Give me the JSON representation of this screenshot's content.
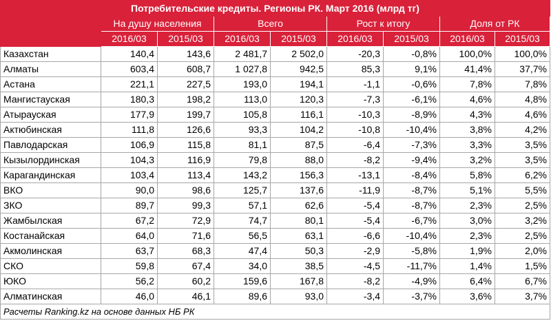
{
  "title": "Потребительские кредиты. Регионы РК. Март 2016 (млрд тг)",
  "groups": [
    "На душу населения",
    "Всего",
    "Рост к итогу",
    "Доля от РК"
  ],
  "years": [
    "2016/03",
    "2015/03",
    "2016/03",
    "2015/03",
    "2016/03",
    "2015/03",
    "2016/03",
    "2015/03"
  ],
  "rows": [
    [
      "Казахстан",
      "140,4",
      "143,6",
      "2 481,7",
      "2 502,0",
      "-20,3",
      "-0,8%",
      "100,0%",
      "100,0%"
    ],
    [
      "Алматы",
      "603,4",
      "608,7",
      "1 027,8",
      "942,5",
      "85,3",
      "9,1%",
      "41,4%",
      "37,7%"
    ],
    [
      "Астана",
      "221,1",
      "227,5",
      "193,0",
      "194,1",
      "-1,1",
      "-0,6%",
      "7,8%",
      "7,8%"
    ],
    [
      "Мангистауская",
      "180,3",
      "198,2",
      "113,0",
      "120,3",
      "-7,3",
      "-6,1%",
      "4,6%",
      "4,8%"
    ],
    [
      "Атырауская",
      "177,9",
      "199,7",
      "105,8",
      "116,1",
      "-10,3",
      "-8,9%",
      "4,3%",
      "4,6%"
    ],
    [
      "Актюбинская",
      "111,8",
      "126,6",
      "93,3",
      "104,2",
      "-10,8",
      "-10,4%",
      "3,8%",
      "4,2%"
    ],
    [
      "Павлодарская",
      "106,9",
      "115,8",
      "81,1",
      "87,5",
      "-6,4",
      "-7,3%",
      "3,3%",
      "3,5%"
    ],
    [
      "Кызылординская",
      "104,3",
      "116,9",
      "79,8",
      "88,0",
      "-8,2",
      "-9,4%",
      "3,2%",
      "3,5%"
    ],
    [
      "Карагандинская",
      "103,4",
      "113,4",
      "143,2",
      "156,3",
      "-13,1",
      "-8,4%",
      "5,8%",
      "6,2%"
    ],
    [
      "ВКО",
      "90,0",
      "98,6",
      "125,7",
      "137,6",
      "-11,9",
      "-8,7%",
      "5,1%",
      "5,5%"
    ],
    [
      "ЗКО",
      "89,7",
      "99,3",
      "57,1",
      "62,6",
      "-5,4",
      "-8,7%",
      "2,3%",
      "2,5%"
    ],
    [
      "Жамбылская",
      "67,2",
      "72,9",
      "74,7",
      "80,1",
      "-5,4",
      "-6,7%",
      "3,0%",
      "3,2%"
    ],
    [
      "Костанайская",
      "64,0",
      "71,6",
      "56,5",
      "63,1",
      "-6,6",
      "-10,4%",
      "2,3%",
      "2,5%"
    ],
    [
      "Акмолинская",
      "63,7",
      "68,3",
      "47,4",
      "50,3",
      "-2,9",
      "-5,8%",
      "1,9%",
      "2,0%"
    ],
    [
      "СКО",
      "59,8",
      "67,4",
      "34,0",
      "38,5",
      "-4,5",
      "-11,7%",
      "1,4%",
      "1,5%"
    ],
    [
      "ЮКО",
      "56,2",
      "60,2",
      "159,6",
      "167,8",
      "-8,2",
      "-4,9%",
      "6,4%",
      "6,7%"
    ],
    [
      "Алматинская",
      "46,0",
      "46,1",
      "89,6",
      "93,0",
      "-3,4",
      "-3,7%",
      "3,6%",
      "3,7%"
    ]
  ],
  "source": "Расчеты Ranking.kz на основе данных НБ РК",
  "colors": {
    "header_bg": "#d9213a",
    "header_text": "#ffffff",
    "grid": "#a6a6a6"
  }
}
